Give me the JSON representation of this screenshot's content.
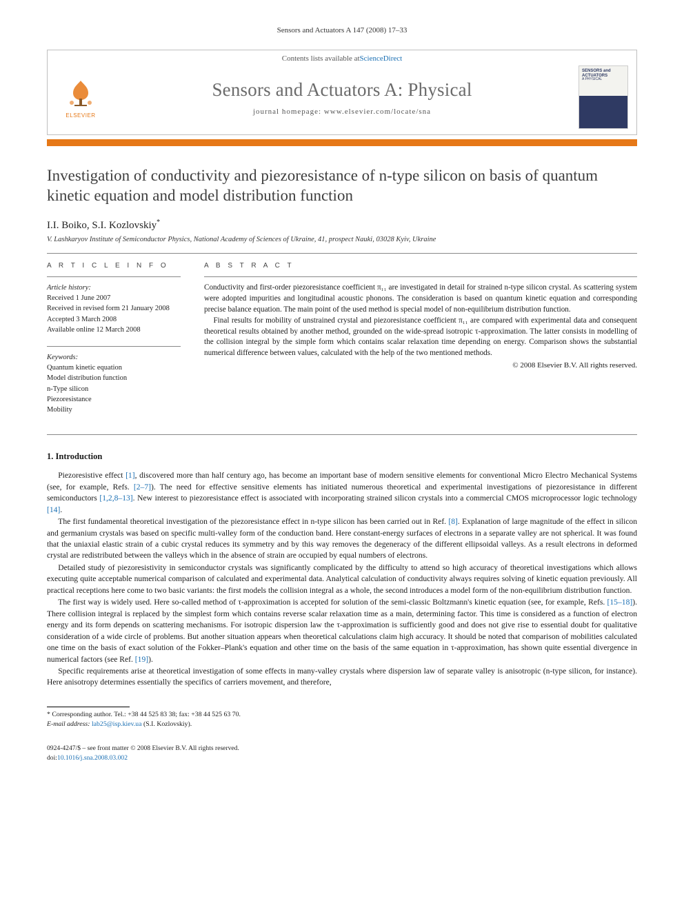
{
  "running_head": "Sensors and Actuators A 147 (2008) 17–33",
  "masthead": {
    "contents_line_pre": "Contents lists available at ",
    "contents_link": "ScienceDirect",
    "journal_title": "Sensors and Actuators A: Physical",
    "homepage_label": "journal homepage: ",
    "homepage_url": "www.elsevier.com/locate/sna",
    "publisher_logo_label": "ELSEVIER",
    "cover_text_top": "SENSORS and ACTUATORS",
    "cover_text_sub": "A PHYSICAL"
  },
  "article": {
    "title": "Investigation of conductivity and piezoresistance of n-type silicon on basis of quantum kinetic equation and model distribution function",
    "authors_html": "I.I. Boiko, S.I. Kozlovskiy",
    "corr_mark": "*",
    "affiliation": "V. Lashkaryov Institute of Semiconductor Physics, National Academy of Sciences of Ukraine, 41, prospect Nauki, 03028 Kyiv, Ukraine"
  },
  "info": {
    "head": "A R T I C L E   I N F O",
    "history_label": "Article history:",
    "history": [
      "Received 1 June 2007",
      "Received in revised form 21 January 2008",
      "Accepted 3 March 2008",
      "Available online 12 March 2008"
    ],
    "keywords_label": "Keywords:",
    "keywords": [
      "Quantum kinetic equation",
      "Model distribution function",
      "n-Type silicon",
      "Piezoresistance",
      "Mobility"
    ]
  },
  "abstract": {
    "head": "A B S T R A C T",
    "paras": [
      "Conductivity and first-order piezoresistance coefficient π₁₁ are investigated in detail for strained n-type silicon crystal. As scattering system were adopted impurities and longitudinal acoustic phonons. The consideration is based on quantum kinetic equation and corresponding precise balance equation. The main point of the used method is special model of non-equilibrium distribution function.",
      "Final results for mobility of unstrained crystal and piezoresistance coefficient π₁₁ are compared with experimental data and consequent theoretical results obtained by another method, grounded on the wide-spread isotropic τ-approximation. The latter consists in modelling of the collision integral by the simple form which contains scalar relaxation time depending on energy. Comparison shows the substantial numerical difference between values, calculated with the help of the two mentioned methods."
    ],
    "copyright": "© 2008 Elsevier B.V. All rights reserved."
  },
  "section1": {
    "head": "1.  Introduction",
    "paras": [
      "Piezoresistive effect <a>[1]</a>, discovered more than half century ago, has become an important base of modern sensitive elements for conventional Micro Electro Mechanical Systems (see, for example, Refs. <a>[2–7]</a>). The need for effective sensitive elements has initiated numerous theoretical and experimental investigations of piezoresistance in different semiconductors <a>[1,2,8–13]</a>. New interest to piezoresistance effect is associated with incorporating strained silicon crystals into a commercial CMOS microprocessor logic technology <a>[14]</a>.",
      "The first fundamental theoretical investigation of the piezoresistance effect in n-type silicon has been carried out in Ref. <a>[8]</a>. Explanation of large magnitude of the effect in silicon and germanium crystals was based on specific multi-valley form of the conduction band. Here constant-energy surfaces of electrons in a separate valley are not spherical. It was found that the uniaxial elastic strain of a cubic crystal reduces its symmetry and by this way removes the degeneracy of the different ellipsoidal valleys. As a result electrons in deformed crystal are redistributed between the valleys which in the absence of strain are occupied by equal numbers of electrons.",
      "Detailed study of piezoresistivity in semiconductor crystals was significantly complicated by the difficulty to attend so high accuracy of theoretical investigations which allows executing quite acceptable numerical comparison of calculated and experimental data. Analytical calculation of conductivity always requires solving of kinetic equation previously. All practical receptions here come to two basic variants: the first models the collision integral as a whole, the second introduces a model form of the non-equilibrium distribution function.",
      "The first way is widely used. Here so-called method of τ-approximation is accepted for solution of the semi-classic Boltzmann's kinetic equation (see, for example, Refs. <a>[15–18]</a>). There collision integral is replaced by the simplest form which contains reverse scalar relaxation time as a main, determining factor. This time is considered as a function of electron energy and its form depends on scattering mechanisms. For isotropic dispersion law the τ-approximation is sufficiently good and does not give rise to essential doubt for qualitative consideration of a wide circle of problems. But another situation appears when theoretical calculations claim high accuracy. It should be noted that comparison of mobilities calculated one time on the basis of exact solution of the Fokker–Plank's equation and other time on the basis of the same equation in τ-approximation, has shown quite essential divergence in numerical factors (see Ref. <a>[19]</a>).",
      "Specific requirements arise at theoretical investigation of some effects in many-valley crystals where dispersion law of separate valley is anisotropic (n-type silicon, for instance). Here anisotropy determines essentially the specifics of carriers movement, and therefore,"
    ]
  },
  "footnotes": {
    "corr": "* Corresponding author. Tel.: +38 44 525 83 38; fax: +38 44 525 63 70.",
    "email_label": "E-mail address:",
    "email": "lab25@isp.kiev.ua",
    "email_who": "(S.I. Kozlovskiy)."
  },
  "bottom": {
    "line1": "0924-4247/$ – see front matter © 2008 Elsevier B.V. All rights reserved.",
    "doi_label": "doi:",
    "doi": "10.1016/j.sna.2008.03.002"
  },
  "colors": {
    "orange": "#e67817",
    "link": "#1a6fb3",
    "title_gray": "#6b6b6b"
  }
}
